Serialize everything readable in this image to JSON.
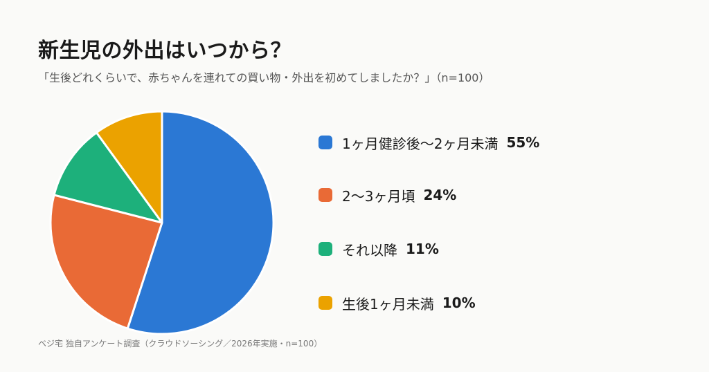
{
  "header": {
    "title": "新生児の外出はいつから？",
    "subtitle": "「生後どれくらいで、赤ちゃんを連れての買い物・外出を初めてしましたか？」（n=100）"
  },
  "chart_data": {
    "type": "pie",
    "title": "新生児の外出はいつから？",
    "subtitle": "「生後どれくらいで、赤ちゃんを連れての買い物・外出を初めてしましたか？」（n=100）",
    "categories": [
      "1ヶ月健診後〜2ヶ月未満",
      "2〜3ヶ月頃",
      "それ以降",
      "生後1ヶ月未満"
    ],
    "values": [
      55,
      24,
      11,
      10
    ],
    "value_labels": [
      "55%",
      "24%",
      "11%",
      "10%"
    ],
    "colors": [
      "#2b78d4",
      "#e96a36",
      "#1db07b",
      "#eba200"
    ],
    "start_angle": "12 o'clock",
    "direction": "clockwise",
    "legend_position": "right"
  },
  "source": "ベジ宅 独自アンケート調査（クラウドソーシング／2026年実施・n=100）"
}
